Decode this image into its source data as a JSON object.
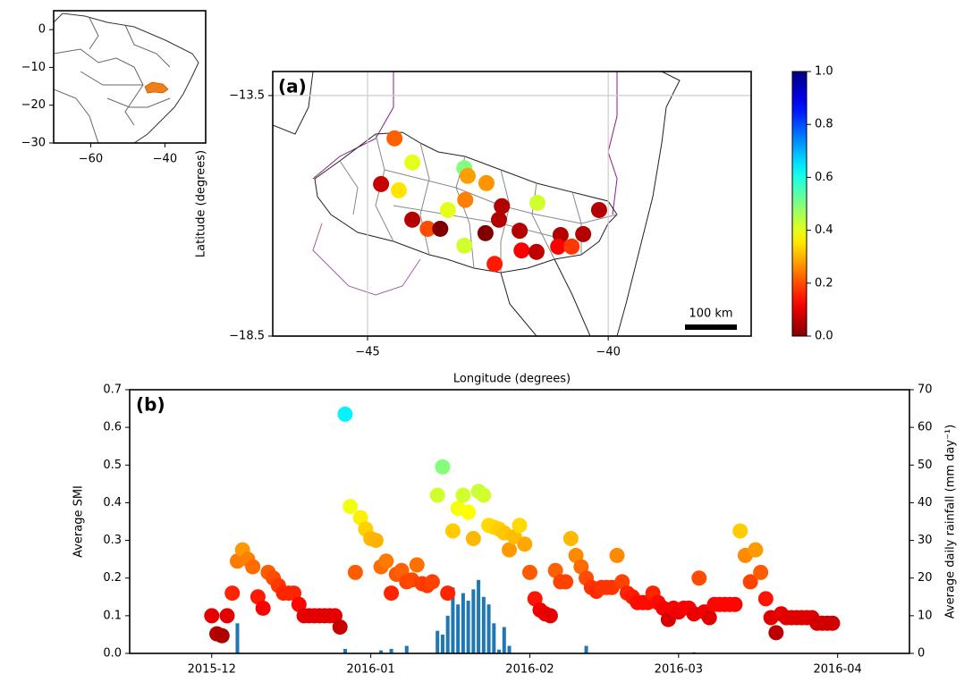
{
  "chart_data": [
    {
      "type": "map",
      "xlim": [
        -70,
        -29
      ],
      "ylim": [
        -30,
        5
      ],
      "xticks": [
        {
          "value": -60,
          "label": "−60"
        },
        {
          "value": -40,
          "label": "−40"
        }
      ],
      "yticks": [
        0,
        {
          "value": -10,
          "label": "−10"
        },
        {
          "value": -20,
          "label": "−20"
        },
        {
          "value": -30,
          "label": "−30"
        }
      ]
    },
    {
      "type": "scatter",
      "title": "(a)",
      "xlabel": "Longitude (degrees)",
      "ylabel": "Latitude (degrees)",
      "xlim": [
        -46.97,
        -37.03
      ],
      "ylim": [
        -18.5,
        -13.0
      ],
      "xticks": [
        {
          "value": -45,
          "label": "−45"
        },
        {
          "value": -40,
          "label": "−40"
        }
      ],
      "yticks": [
        {
          "value": -13.5,
          "label": "−13.5"
        },
        {
          "value": -18.5,
          "label": "−18.5"
        }
      ],
      "grid": true,
      "colormap": "jet_r",
      "clim": [
        0,
        1
      ],
      "cticks": [
        {
          "value": 0,
          "label": "0.0"
        },
        0.2,
        0.4,
        0.6,
        0.8,
        {
          "value": 1,
          "label": "1.0"
        }
      ],
      "scale_bar": "100 km",
      "x": [
        -44.44,
        -44.07,
        -42.99,
        -42.92,
        -42.53,
        -44.72,
        -44.35,
        -42.97,
        -43.33,
        -42.21,
        -41.47,
        -40.19,
        -44.07,
        -42.27,
        -43.75,
        -43.49,
        -42.55,
        -41.84,
        -40.99,
        -40.52,
        -42.99,
        -41.8,
        -41.49,
        -41.04,
        -40.76,
        -42.36
      ],
      "y": [
        -14.39,
        -14.89,
        -15.01,
        -15.17,
        -15.32,
        -15.34,
        -15.47,
        -15.67,
        -15.88,
        -15.8,
        -15.73,
        -15.88,
        -16.08,
        -16.08,
        -16.27,
        -16.27,
        -16.36,
        -16.31,
        -16.4,
        -16.38,
        -16.62,
        -16.72,
        -16.75,
        -16.64,
        -16.64,
        -17.0
      ],
      "values": [
        0.22,
        0.4,
        0.5,
        0.28,
        0.27,
        0.07,
        0.35,
        0.25,
        0.4,
        0.05,
        0.42,
        0.05,
        0.05,
        0.05,
        0.2,
        0.0,
        0.0,
        0.05,
        0.05,
        0.05,
        0.42,
        0.12,
        0.06,
        0.12,
        0.18,
        0.15
      ]
    },
    {
      "type": "combo",
      "title": "(b)",
      "ylabel": "Average SMI",
      "y2label": "Average daily rainfall (mm day⁻¹)",
      "xlim": [
        "2015-11-15",
        "2016-04-15"
      ],
      "xticks": [
        {
          "value": "2015-12-01",
          "label": "2015-12"
        },
        {
          "value": "2016-01-01",
          "label": "2016-01"
        },
        {
          "value": "2016-02-01",
          "label": "2016-02"
        },
        {
          "value": "2016-03-01",
          "label": "2016-03"
        },
        {
          "value": "2016-04-01",
          "label": "2016-04"
        }
      ],
      "ylim": [
        0,
        0.7
      ],
      "yticks": [
        {
          "value": 0,
          "label": "0.0"
        },
        0.1,
        0.2,
        0.3,
        0.4,
        0.5,
        0.6,
        0.7
      ],
      "y2lim": [
        0,
        70
      ],
      "y2ticks": [
        0,
        10,
        20,
        30,
        40,
        50,
        60,
        70
      ],
      "series": [
        {
          "type": "scatter",
          "colormap": "jet_r",
          "x": [
            "2015-12-01",
            "2015-12-02",
            "2015-12-03",
            "2015-12-04",
            "2015-12-05",
            "2015-12-06",
            "2015-12-07",
            "2015-12-08",
            "2015-12-09",
            "2015-12-10",
            "2015-12-11",
            "2015-12-12",
            "2015-12-13",
            "2015-12-14",
            "2015-12-15",
            "2015-12-16",
            "2015-12-17",
            "2015-12-18",
            "2015-12-19",
            "2015-12-20",
            "2015-12-21",
            "2015-12-22",
            "2015-12-23",
            "2015-12-24",
            "2015-12-25",
            "2015-12-26",
            "2015-12-27",
            "2015-12-28",
            "2015-12-29",
            "2015-12-30",
            "2015-12-31",
            "2016-01-01",
            "2016-01-02",
            "2016-01-03",
            "2016-01-04",
            "2016-01-05",
            "2016-01-06",
            "2016-01-07",
            "2016-01-08",
            "2016-01-09",
            "2016-01-10",
            "2016-01-11",
            "2016-01-12",
            "2016-01-13",
            "2016-01-14",
            "2016-01-15",
            "2016-01-16",
            "2016-01-17",
            "2016-01-18",
            "2016-01-19",
            "2016-01-20",
            "2016-01-21",
            "2016-01-22",
            "2016-01-23",
            "2016-01-24",
            "2016-01-25",
            "2016-01-26",
            "2016-01-27",
            "2016-01-28",
            "2016-01-29",
            "2016-01-30",
            "2016-01-31",
            "2016-02-01",
            "2016-02-02",
            "2016-02-03",
            "2016-02-04",
            "2016-02-05",
            "2016-02-06",
            "2016-02-07",
            "2016-02-08",
            "2016-02-09",
            "2016-02-10",
            "2016-02-11",
            "2016-02-12",
            "2016-02-13",
            "2016-02-14",
            "2016-02-15",
            "2016-02-16",
            "2016-02-17",
            "2016-02-18",
            "2016-02-19",
            "2016-02-20",
            "2016-02-21",
            "2016-02-22",
            "2016-02-23",
            "2016-02-24",
            "2016-02-25",
            "2016-02-26",
            "2016-02-27",
            "2016-02-28",
            "2016-02-29",
            "2016-03-01",
            "2016-03-02",
            "2016-03-03",
            "2016-03-04",
            "2016-03-05",
            "2016-03-06",
            "2016-03-07",
            "2016-03-08",
            "2016-03-09",
            "2016-03-10",
            "2016-03-11",
            "2016-03-12",
            "2016-03-13",
            "2016-03-14",
            "2016-03-15",
            "2016-03-16",
            "2016-03-17",
            "2016-03-18",
            "2016-03-19",
            "2016-03-20",
            "2016-03-21",
            "2016-03-22",
            "2016-03-23",
            "2016-03-24",
            "2016-03-25",
            "2016-03-26",
            "2016-03-27",
            "2016-03-28",
            "2016-03-29",
            "2016-03-30",
            "2016-03-31"
          ],
          "values": [
            0.1,
            0.052,
            0.047,
            0.1,
            0.16,
            0.245,
            0.275,
            0.25,
            0.23,
            0.15,
            0.12,
            0.215,
            0.2,
            0.18,
            0.16,
            0.16,
            0.16,
            0.13,
            0.1,
            0.1,
            0.1,
            0.1,
            0.1,
            0.1,
            0.1,
            0.07,
            0.635,
            0.39,
            0.215,
            0.36,
            0.33,
            0.305,
            0.3,
            0.23,
            0.245,
            0.16,
            0.21,
            0.22,
            0.19,
            0.195,
            0.235,
            0.185,
            0.18,
            0.19,
            0.42,
            0.495,
            0.16,
            0.325,
            0.385,
            0.42,
            0.375,
            0.305,
            0.43,
            0.42,
            0.34,
            0.335,
            0.33,
            0.32,
            0.275,
            0.31,
            0.34,
            0.29,
            0.215,
            0.145,
            0.115,
            0.105,
            0.1,
            0.22,
            0.19,
            0.19,
            0.305,
            0.26,
            0.23,
            0.2,
            0.175,
            0.165,
            0.175,
            0.175,
            0.175,
            0.26,
            0.19,
            0.16,
            0.15,
            0.135,
            0.135,
            0.135,
            0.16,
            0.135,
            0.12,
            0.09,
            0.12,
            0.11,
            0.12,
            0.12,
            0.105,
            0.2,
            0.11,
            0.095,
            0.13,
            0.13,
            0.13,
            0.13,
            0.13,
            0.325,
            0.26,
            0.19,
            0.275,
            0.215,
            0.145,
            0.095,
            0.055,
            0.105,
            0.095,
            0.095,
            0.095,
            0.095,
            0.095,
            0.095,
            0.08,
            0.08,
            0.08,
            0.08
          ]
        },
        {
          "type": "bar",
          "axis": "y2",
          "color": "#1f77b4",
          "x": [
            "2015-12-06",
            "2015-12-27",
            "2016-01-03",
            "2016-01-05",
            "2016-01-08",
            "2016-01-14",
            "2016-01-15",
            "2016-01-16",
            "2016-01-17",
            "2016-01-18",
            "2016-01-19",
            "2016-01-20",
            "2016-01-21",
            "2016-01-22",
            "2016-01-23",
            "2016-01-24",
            "2016-01-25",
            "2016-01-26",
            "2016-01-27",
            "2016-01-28",
            "2016-02-12",
            "2016-03-04"
          ],
          "values": [
            8,
            1.2,
            0.8,
            1.2,
            2,
            6,
            5,
            10,
            17.5,
            13,
            16,
            14,
            17,
            19.5,
            15,
            13,
            8,
            1,
            7,
            2,
            2,
            0.3
          ]
        }
      ]
    }
  ]
}
